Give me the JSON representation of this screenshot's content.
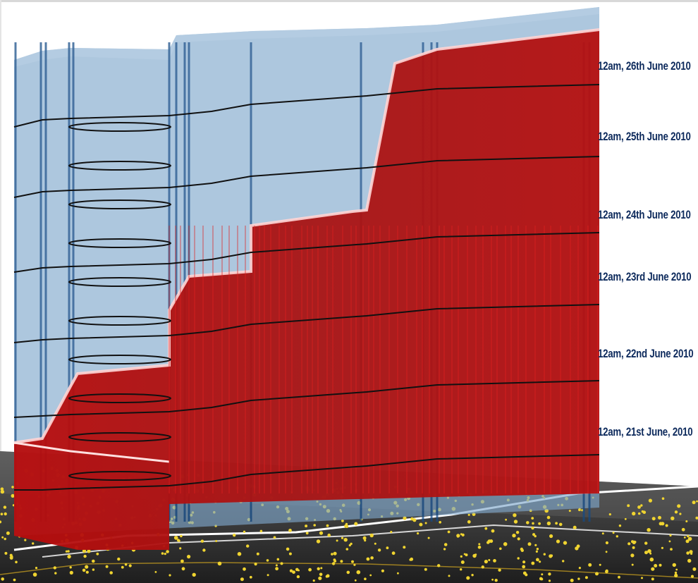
{
  "view": {
    "date_labels": [
      "12am, 26th June 2010",
      "12am, 25th June 2010",
      "12am, 24th June 2010",
      "12am, 23rd June 2010",
      "12am, 22nd June 2010",
      "12am, 21st June, 2010"
    ]
  },
  "colors": {
    "background": "#ffffff",
    "blue_surface": "#6f9fc7",
    "blue_edge": "#134a86",
    "red_surface": "#b11a1a",
    "red_edge": "#d81818",
    "time_rings": "#111111",
    "ground": "#3a3a3a",
    "points": "#f0d430",
    "label_text": "#0d2a5c"
  }
}
